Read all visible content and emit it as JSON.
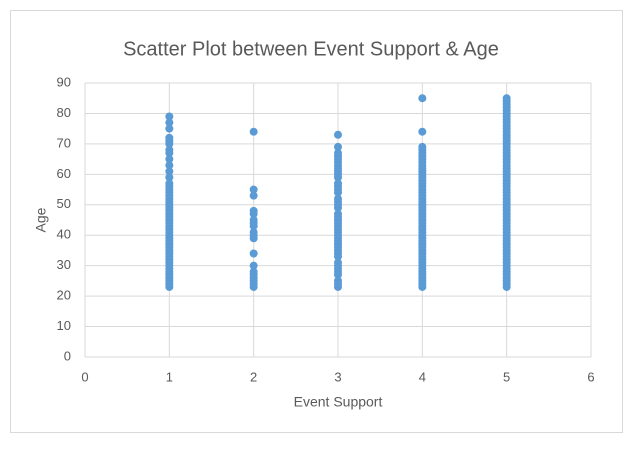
{
  "chart_data": {
    "type": "scatter",
    "title": "Scatter Plot between Event Support & Age",
    "xlabel": "Event Support",
    "ylabel": "Age",
    "xlim": [
      0,
      6
    ],
    "xticks": [
      0,
      1,
      2,
      3,
      4,
      5,
      6
    ],
    "ylim": [
      0,
      90
    ],
    "yticks": [
      0,
      10,
      20,
      30,
      40,
      50,
      60,
      70,
      80,
      90
    ],
    "grid": true,
    "color": "#5b9bd5",
    "x": [
      1,
      1,
      1,
      1,
      1,
      1,
      1,
      1,
      1,
      1,
      1,
      1,
      1,
      1,
      1,
      1,
      1,
      1,
      1,
      1,
      1,
      1,
      1,
      1,
      1,
      1,
      1,
      1,
      1,
      1,
      1,
      1,
      1,
      1,
      1,
      1,
      1,
      1,
      1,
      1,
      1,
      1,
      1,
      1,
      1,
      1,
      1,
      2,
      2,
      2,
      2,
      2,
      2,
      2,
      2,
      2,
      2,
      2,
      2,
      2,
      2,
      2,
      2,
      2,
      2,
      2,
      3,
      3,
      3,
      3,
      3,
      3,
      3,
      3,
      3,
      3,
      3,
      3,
      3,
      3,
      3,
      3,
      3,
      3,
      3,
      3,
      3,
      3,
      3,
      3,
      3,
      3,
      3,
      3,
      3,
      3,
      3,
      3,
      3,
      3,
      3,
      3,
      3,
      3,
      3,
      3,
      3,
      3,
      4,
      4,
      4,
      4,
      4,
      4,
      4,
      4,
      4,
      4,
      4,
      4,
      4,
      4,
      4,
      4,
      4,
      4,
      4,
      4,
      4,
      4,
      4,
      4,
      4,
      4,
      4,
      4,
      4,
      4,
      4,
      4,
      4,
      4,
      4,
      4,
      4,
      4,
      4,
      4,
      4,
      4,
      4,
      4,
      4,
      4,
      4,
      4,
      4,
      5,
      5,
      5,
      5,
      5,
      5,
      5,
      5,
      5,
      5,
      5,
      5,
      5,
      5,
      5,
      5,
      5,
      5,
      5,
      5,
      5,
      5,
      5,
      5,
      5,
      5,
      5,
      5,
      5,
      5,
      5,
      5,
      5,
      5,
      5,
      5,
      5,
      5,
      5,
      5,
      5,
      5,
      5,
      5,
      5,
      5,
      5,
      5,
      5,
      5,
      5,
      5,
      5,
      5,
      5,
      5,
      5,
      5,
      5,
      5,
      5,
      5,
      5
    ],
    "values": [
      23,
      24,
      25,
      26,
      27,
      28,
      29,
      30,
      31,
      32,
      33,
      34,
      35,
      36,
      37,
      38,
      39,
      40,
      41,
      42,
      43,
      44,
      45,
      46,
      47,
      48,
      49,
      50,
      51,
      52,
      53,
      54,
      55,
      56,
      57,
      59,
      61,
      63,
      65,
      67,
      68,
      70,
      71,
      72,
      75,
      77,
      79,
      23,
      24,
      25,
      26,
      27,
      28,
      30,
      34,
      39,
      40,
      41,
      43,
      44,
      45,
      47,
      48,
      53,
      55,
      74,
      23,
      24,
      25,
      27,
      28,
      29,
      30,
      31,
      33,
      34,
      35,
      36,
      37,
      38,
      39,
      40,
      41,
      42,
      43,
      44,
      45,
      46,
      47,
      49,
      50,
      51,
      52,
      54,
      55,
      56,
      57,
      59,
      60,
      61,
      62,
      63,
      64,
      65,
      66,
      67,
      69,
      73,
      23,
      24,
      25,
      26,
      27,
      28,
      29,
      30,
      31,
      32,
      33,
      34,
      35,
      36,
      37,
      38,
      39,
      40,
      41,
      42,
      43,
      44,
      45,
      46,
      47,
      48,
      49,
      50,
      51,
      52,
      53,
      54,
      55,
      56,
      57,
      58,
      59,
      60,
      61,
      62,
      63,
      64,
      65,
      66,
      67,
      68,
      69,
      74,
      85,
      23,
      24,
      25,
      26,
      27,
      28,
      29,
      30,
      31,
      32,
      33,
      34,
      35,
      36,
      37,
      38,
      39,
      40,
      41,
      42,
      43,
      44,
      45,
      46,
      47,
      48,
      49,
      50,
      51,
      52,
      53,
      54,
      55,
      56,
      57,
      58,
      59,
      60,
      61,
      62,
      63,
      64,
      65,
      66,
      67,
      68,
      69,
      70,
      71,
      72,
      73,
      74,
      75,
      76,
      77,
      78,
      79,
      80,
      81,
      82,
      83,
      84,
      85
    ]
  }
}
